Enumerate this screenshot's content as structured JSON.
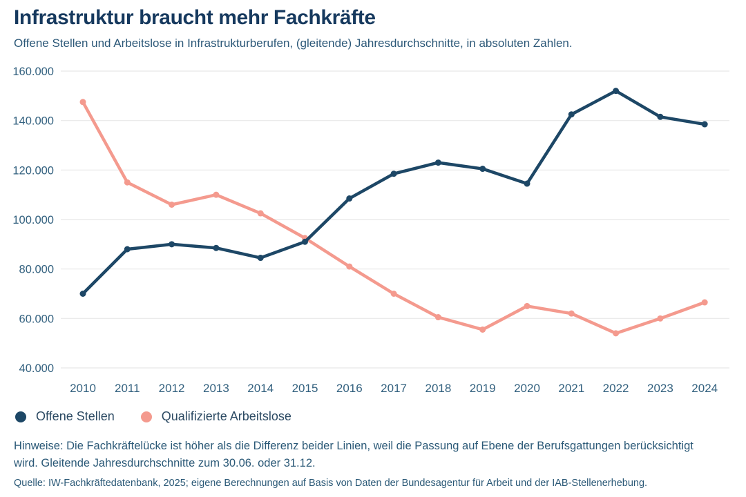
{
  "header": {
    "title": "Infrastruktur braucht mehr Fachkräfte",
    "subtitle": "Offene Stellen und Arbeitslose in Infrastrukturberufen, (gleitende) Jahresdurchschnitte, in absoluten Zahlen."
  },
  "chart_data": {
    "type": "line",
    "title": "Infrastruktur braucht mehr Fachkräfte",
    "xlabel": "",
    "ylabel": "",
    "categories": [
      "2010",
      "2011",
      "2012",
      "2013",
      "2014",
      "2015",
      "2016",
      "2017",
      "2018",
      "2019",
      "2020",
      "2021",
      "2022",
      "2023",
      "2024"
    ],
    "series": [
      {
        "name": "Offene Stellen",
        "color": "#1d4766",
        "values": [
          70000,
          88000,
          90000,
          88500,
          84500,
          91000,
          108500,
          118500,
          123000,
          120500,
          114500,
          142500,
          152000,
          141500,
          138500
        ]
      },
      {
        "name": "Qualifizierte Arbeitslose",
        "color": "#f49a8e",
        "values": [
          147500,
          115000,
          106000,
          110000,
          102500,
          92500,
          81000,
          70000,
          60500,
          55500,
          65000,
          62000,
          54000,
          60000,
          66500
        ]
      }
    ],
    "ylim": [
      40000,
      160000
    ],
    "ytick_step": 20000,
    "ytick_labels": [
      "40.000",
      "60.000",
      "80.000",
      "100.000",
      "120.000",
      "140.000",
      "160.000"
    ],
    "grid": true,
    "legend_position": "bottom-left",
    "tick_color": "#33617f",
    "grid_color": "#e8e8e8"
  },
  "legend": {
    "items": [
      {
        "label": "Offene Stellen",
        "color": "#1d4766"
      },
      {
        "label": "Qualifizierte Arbeitslose",
        "color": "#f49a8e"
      }
    ]
  },
  "notes": {
    "hinweise": "Hinweise: Die Fachkräftelücke ist höher als die Differenz beider Linien, weil die Passung auf Ebene der Berufsgattungen berücksichtigt wird. Gleitende Jahresdurchschnitte zum 30.06. oder 31.12.",
    "quelle": "Quelle: IW-Fachkräftedatenbank, 2025; eigene Berechnungen auf Basis von Daten der Bundesagentur für Arbeit und der IAB-Stellenerhebung."
  }
}
